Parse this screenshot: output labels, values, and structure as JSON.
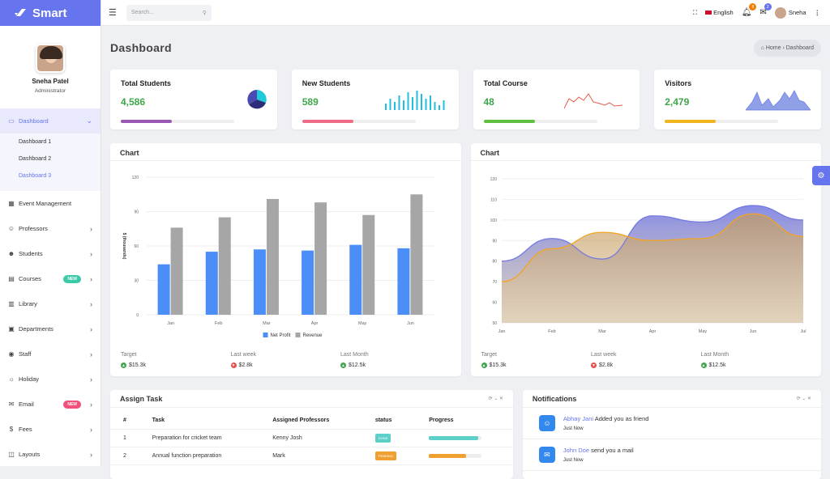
{
  "brand": {
    "name": "Smart"
  },
  "profile": {
    "name": "Sneha Patel",
    "role": "Administrator"
  },
  "sidebar": {
    "dashboard": "Dashboard",
    "subitems": [
      "Dashboard 1",
      "Dashboard 2",
      "Dashboard 3"
    ],
    "items": [
      {
        "label": "Event Management",
        "icon": "calendar-icon"
      },
      {
        "label": "Professors",
        "icon": "user-icon"
      },
      {
        "label": "Students",
        "icon": "users-icon"
      },
      {
        "label": "Courses",
        "icon": "book-icon",
        "badge": "NEW",
        "badge_color": "#3bc9a8"
      },
      {
        "label": "Library",
        "icon": "library-icon"
      },
      {
        "label": "Departments",
        "icon": "building-icon"
      },
      {
        "label": "Staff",
        "icon": "staff-icon"
      },
      {
        "label": "Holiday",
        "icon": "holiday-icon"
      },
      {
        "label": "Email",
        "icon": "email-icon",
        "badge": "NEW",
        "badge_color": "#f0507a"
      },
      {
        "label": "Fees",
        "icon": "dollar-icon"
      },
      {
        "label": "Layouts",
        "icon": "layout-icon"
      }
    ]
  },
  "topbar": {
    "search_placeholder": "Search...",
    "language": "English",
    "user": "Sneha",
    "notif_count": "8",
    "mail_count": "2"
  },
  "page": {
    "title": "Dashboard",
    "breadcrumb_home": "Home",
    "breadcrumb_current": "Dashboard"
  },
  "stats": [
    {
      "title": "Total Students",
      "value": "4,586",
      "color": "#9b59b6",
      "progress": 0.45
    },
    {
      "title": "New Students",
      "value": "589",
      "color": "#f06b86",
      "progress": 0.45
    },
    {
      "title": "Total Course",
      "value": "48",
      "color": "#5fbf3f",
      "progress": 0.45
    },
    {
      "title": "Visitors",
      "value": "2,479",
      "color": "#f0b51f",
      "progress": 0.45
    }
  ],
  "chart_cards": [
    {
      "title": "Chart",
      "footer": [
        {
          "label": "Target",
          "value": "$15.3k",
          "dir": "up"
        },
        {
          "label": "Last week",
          "value": "$2.8k",
          "dir": "down"
        },
        {
          "label": "Last Month",
          "value": "$12.5k",
          "dir": "up"
        }
      ]
    },
    {
      "title": "Chart",
      "footer": [
        {
          "label": "Target",
          "value": "$15.3k",
          "dir": "up"
        },
        {
          "label": "Last week",
          "value": "$2.8k",
          "dir": "down"
        },
        {
          "label": "Last Month",
          "value": "$12.5k",
          "dir": "up"
        }
      ]
    }
  ],
  "chart_data": [
    {
      "type": "bar",
      "categories": [
        "Jan",
        "Feb",
        "Mar",
        "Apr",
        "May",
        "Jun"
      ],
      "series": [
        {
          "name": "Net Profit",
          "values": [
            44,
            55,
            57,
            56,
            61,
            58
          ],
          "color": "#4b8ef7"
        },
        {
          "name": "Revenue",
          "values": [
            76,
            85,
            101,
            98,
            87,
            105
          ],
          "color": "#a6a6a6"
        }
      ],
      "ylabel": "$ (thousands)",
      "ylim": [
        0,
        120
      ],
      "yticks": [
        0,
        30,
        60,
        90,
        120
      ],
      "legend": "bottom"
    },
    {
      "type": "area",
      "categories": [
        "Jan",
        "Feb",
        "Mar",
        "Apr",
        "May",
        "Jun",
        "Jul"
      ],
      "series": [
        {
          "values": [
            80,
            91,
            81,
            102,
            99,
            107,
            100
          ],
          "color": "#7379e0"
        },
        {
          "values": [
            70,
            86,
            94,
            90,
            91,
            103,
            92
          ],
          "color": "#f4a51f"
        }
      ],
      "ylim": [
        50,
        120
      ],
      "yticks": [
        50,
        60,
        70,
        80,
        90,
        100,
        110,
        120
      ]
    }
  ],
  "task": {
    "title": "Assign Task",
    "columns": [
      "#",
      "Task",
      "Assigned Professors",
      "status",
      "Progress"
    ],
    "rows": [
      {
        "n": "1",
        "task": "Preparation for cricket team",
        "prof": "Kenny Josh",
        "status": "DONE",
        "status_color": "#5ccfc9",
        "progress": 0.93,
        "pcolor": "#5ccfc9"
      },
      {
        "n": "2",
        "task": "Annual function preparation",
        "prof": "Mark",
        "status": "PENDING",
        "status_color": "#f0a030",
        "progress": 0.7,
        "pcolor": "#f0a030"
      }
    ]
  },
  "notifications": {
    "title": "Notifications",
    "items": [
      {
        "who": "Abhay Jani",
        "text": " Added you as friend",
        "time": "Just Now",
        "icon": "user-plus-icon"
      },
      {
        "who": "John Doe",
        "text": " send you a mail",
        "time": "Just Now",
        "icon": "mail-icon"
      }
    ]
  }
}
